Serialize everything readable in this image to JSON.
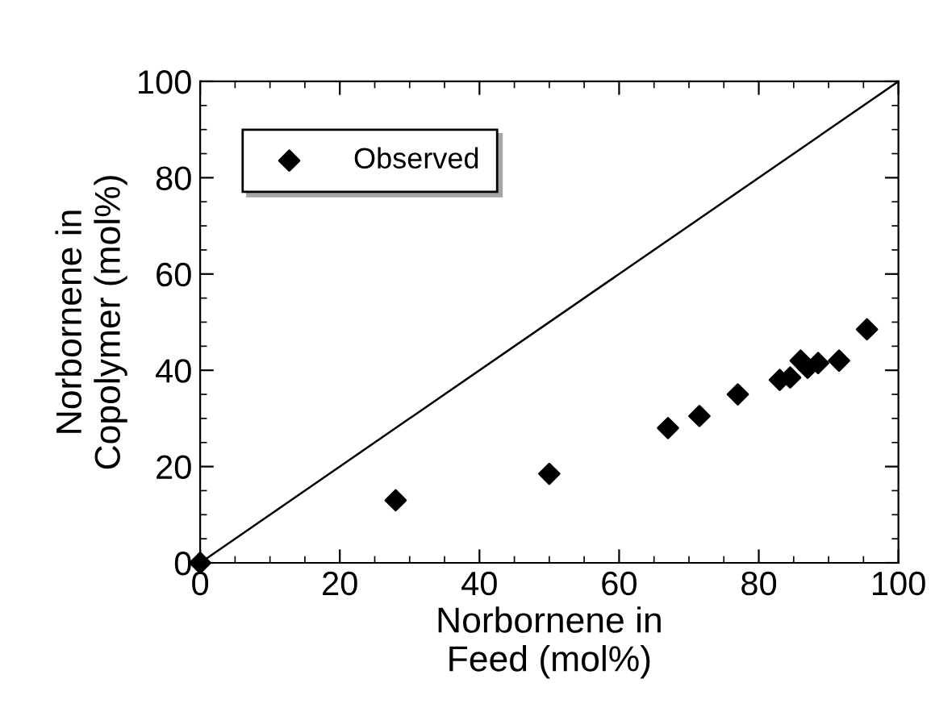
{
  "chart_data": {
    "type": "scatter",
    "xlabel": "Norbornene in\nFeed (mol%)",
    "ylabel": "Norbornene in\nCopolymer (mol%)",
    "series": [
      {
        "name": "Observed",
        "color": "#000000",
        "marker": "diamond",
        "x": [
          0,
          28,
          50,
          67,
          71.5,
          77,
          83,
          84.5,
          86,
          87,
          88.5,
          91.5,
          95.5
        ],
        "values": [
          0,
          13,
          18.5,
          28,
          30.5,
          35,
          38,
          38.5,
          42,
          40.5,
          41.5,
          42,
          48.5
        ]
      },
      {
        "type": "line",
        "color": "#000000",
        "marker": "none",
        "x": [
          0,
          100
        ],
        "values": [
          0,
          100
        ]
      }
    ],
    "xlim": [
      0,
      100
    ],
    "ylim": [
      0,
      100
    ],
    "xticks": [
      0,
      20,
      40,
      60,
      80,
      100
    ],
    "yticks": [
      0,
      20,
      40,
      60,
      80,
      100
    ],
    "grid": false,
    "legend": "top left"
  }
}
